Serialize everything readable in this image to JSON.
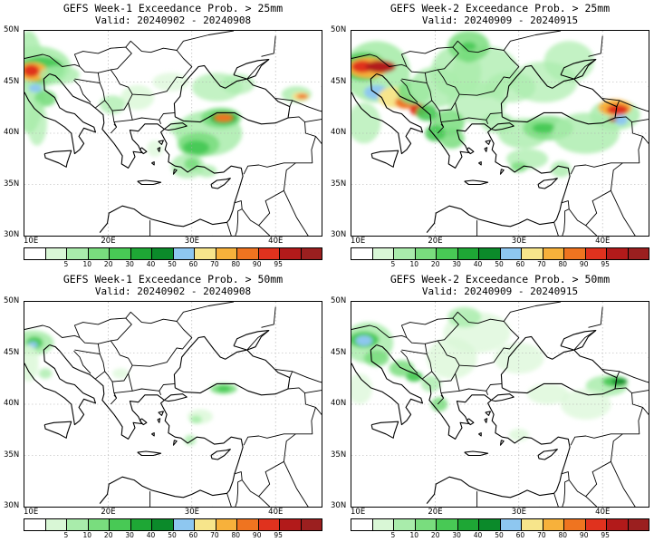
{
  "colorbar": {
    "levels": [
      "5",
      "10",
      "20",
      "30",
      "40",
      "50",
      "60",
      "70",
      "80",
      "90",
      "95"
    ],
    "colors": [
      "#ffffff",
      "#d9f7d6",
      "#a9ecab",
      "#79dd7e",
      "#48c955",
      "#1ea735",
      "#0b8a2a",
      "#8ec7f0",
      "#f7e58b",
      "#f7b13b",
      "#ef7420",
      "#e0321e",
      "#b21a1a",
      "#9b1f1f"
    ]
  },
  "lat_labels": [
    "50N",
    "45N",
    "40N",
    "35N",
    "30N"
  ],
  "lon_labels": [
    "10E",
    "20E",
    "30E",
    "40E"
  ],
  "panels": [
    {
      "title": "GEFS Week-1 Exceedance Prob. > 25mm",
      "valid": "Valid: 20240902 - 20240908"
    },
    {
      "title": "GEFS Week-2 Exceedance Prob. > 25mm",
      "valid": "Valid: 20240909 - 20240915"
    },
    {
      "title": "GEFS Week-1 Exceedance Prob. > 50mm",
      "valid": "Valid: 20240902 - 20240908"
    },
    {
      "title": "GEFS Week-2 Exceedance Prob. > 50mm",
      "valid": "Valid: 20240909 - 20240915"
    }
  ]
}
